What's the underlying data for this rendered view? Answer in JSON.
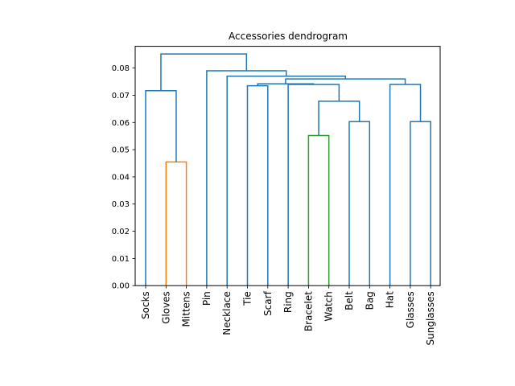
{
  "chart_data": {
    "type": "dendrogram",
    "title": "Accessories dendrogram",
    "xlabel": "",
    "ylabel": "",
    "ylim": [
      0,
      0.088
    ],
    "yticks": [
      0.0,
      0.01,
      0.02,
      0.03,
      0.04,
      0.05,
      0.06,
      0.07,
      0.08
    ],
    "ytick_labels": [
      "0.00",
      "0.01",
      "0.02",
      "0.03",
      "0.04",
      "0.05",
      "0.06",
      "0.07",
      "0.08"
    ],
    "grid": false,
    "leaves": [
      "Socks",
      "Gloves",
      "Mittens",
      "Pin",
      "Necklace",
      "Tie",
      "Scarf",
      "Ring",
      "Bracelet",
      "Watch",
      "Belt",
      "Bag",
      "Hat",
      "Glasses",
      "Sunglasses"
    ],
    "colors": {
      "default": "#1f77b4",
      "orange": "#ff7f0e",
      "green": "#2ca02c"
    },
    "links": [
      {
        "left": 1,
        "right": 2,
        "left_bottom": 0,
        "right_bottom": 0,
        "height": 0.0455,
        "color": "orange"
      },
      {
        "left": 8,
        "right": 9,
        "left_bottom": 0,
        "right_bottom": 0,
        "height": 0.0552,
        "color": "green"
      },
      {
        "left": 10,
        "right": 11,
        "left_bottom": 0,
        "right_bottom": 0,
        "height": 0.0603,
        "color": "default"
      },
      {
        "left": 13,
        "right": 14,
        "left_bottom": 0,
        "right_bottom": 0,
        "height": 0.0603,
        "color": "default"
      },
      {
        "left": 8.5,
        "right": 10.5,
        "left_bottom": 0.0552,
        "right_bottom": 0.0603,
        "height": 0.0678,
        "color": "default"
      },
      {
        "left": 0,
        "right": 1.5,
        "left_bottom": 0,
        "right_bottom": 0.0455,
        "height": 0.0717,
        "color": "default"
      },
      {
        "left": 5,
        "right": 6,
        "left_bottom": 0,
        "right_bottom": 0,
        "height": 0.0735,
        "color": "default"
      },
      {
        "left": 7,
        "right": 9.5,
        "left_bottom": 0,
        "right_bottom": 0.0678,
        "height": 0.074,
        "color": "default"
      },
      {
        "left": 12,
        "right": 13.5,
        "left_bottom": 0,
        "right_bottom": 0.0603,
        "height": 0.074,
        "color": "default"
      },
      {
        "left": 5.5,
        "right": 8.25,
        "left_bottom": 0.0735,
        "right_bottom": 0.074,
        "height": 0.0742,
        "color": "default"
      },
      {
        "left": 6.875,
        "right": 12.75,
        "left_bottom": 0.0742,
        "right_bottom": 0.074,
        "height": 0.076,
        "color": "default"
      },
      {
        "left": 4,
        "right": 9.8125,
        "left_bottom": 0,
        "right_bottom": 0.076,
        "height": 0.077,
        "color": "default"
      },
      {
        "left": 3,
        "right": 6.90625,
        "left_bottom": 0,
        "right_bottom": 0.077,
        "height": 0.079,
        "color": "default"
      },
      {
        "left": 0.75,
        "right": 4.953125,
        "left_bottom": 0.0717,
        "right_bottom": 0.079,
        "height": 0.0852,
        "color": "default"
      }
    ]
  }
}
